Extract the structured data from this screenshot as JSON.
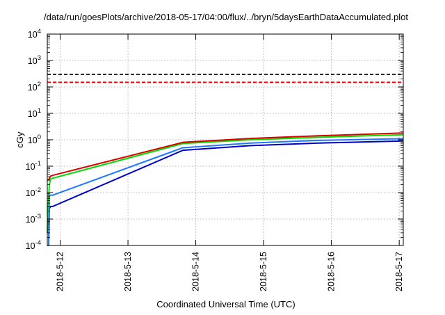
{
  "chart_data": {
    "type": "line",
    "title": "/data/run/goesPlots/archive/2018-05-17/04:00/flux/../bryn/5daysEarthDataAccumulated.plot",
    "xlabel": "Coordinated Universal Time (UTC)",
    "ylabel": "cGy",
    "yscale": "log",
    "ylim": [
      0.0001,
      10000
    ],
    "xlim": [
      0,
      5.25
    ],
    "yticks": [
      {
        "value": 0.0001,
        "base": "10",
        "exp": "-4"
      },
      {
        "value": 0.001,
        "base": "10",
        "exp": "-3"
      },
      {
        "value": 0.01,
        "base": "10",
        "exp": "-2"
      },
      {
        "value": 0.1,
        "base": "10",
        "exp": "-1"
      },
      {
        "value": 1,
        "base": "10",
        "exp": "0"
      },
      {
        "value": 10,
        "base": "10",
        "exp": "1"
      },
      {
        "value": 100,
        "base": "10",
        "exp": "2"
      },
      {
        "value": 1000,
        "base": "10",
        "exp": "3"
      },
      {
        "value": 10000,
        "base": "10",
        "exp": "4"
      }
    ],
    "xticks": [
      {
        "value": 0.19,
        "label": "2018-5-12"
      },
      {
        "value": 1.19,
        "label": "2018-5-13"
      },
      {
        "value": 2.19,
        "label": "2018-5-14"
      },
      {
        "value": 3.19,
        "label": "2018-5-15"
      },
      {
        "value": 4.19,
        "label": "2018-5-16"
      },
      {
        "value": 5.19,
        "label": "2018-5-17"
      }
    ],
    "grid": true,
    "reference_lines": [
      {
        "y": 300,
        "color": "#000000",
        "style": "dashed"
      },
      {
        "y": 150,
        "color": "#ff0000",
        "style": "dashed"
      }
    ],
    "series": [
      {
        "color": "#0000cc",
        "x": [
          0.0,
          0.02,
          0.03,
          0.05,
          0.08,
          2.0,
          3.0,
          4.0,
          5.25
        ],
        "y": [
          0.0001,
          0.0001,
          0.0025,
          0.003,
          0.003,
          0.4,
          0.6,
          0.75,
          0.9
        ]
      },
      {
        "color": "#1e78ff",
        "x": [
          0.0,
          0.02,
          0.03,
          0.05,
          0.08,
          2.0,
          3.0,
          4.0,
          5.25
        ],
        "y": [
          0.0001,
          0.0001,
          0.0075,
          0.008,
          0.008,
          0.5,
          0.75,
          0.95,
          1.1
        ]
      },
      {
        "color": "#00dd00",
        "x": [
          0.0,
          0.02,
          0.03,
          0.05,
          0.08,
          2.0,
          3.0,
          4.0,
          5.25
        ],
        "y": [
          0.0003,
          0.006,
          0.02,
          0.033,
          0.035,
          0.72,
          1.0,
          1.25,
          1.55
        ]
      },
      {
        "color": "#dd0000",
        "x": [
          0.0,
          0.02,
          0.03,
          0.05,
          0.08,
          2.0,
          3.0,
          4.0,
          5.25
        ],
        "y": [
          0.03,
          0.03,
          0.035,
          0.042,
          0.045,
          0.8,
          1.12,
          1.42,
          1.8
        ]
      }
    ]
  }
}
